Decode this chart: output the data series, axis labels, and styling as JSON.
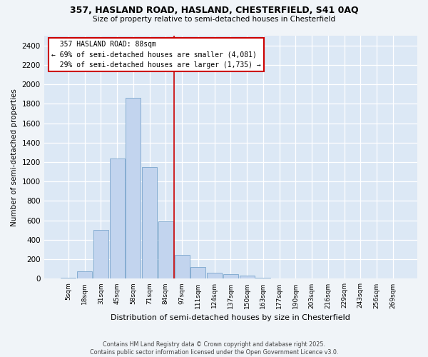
{
  "title_line1": "357, HASLAND ROAD, HASLAND, CHESTERFIELD, S41 0AQ",
  "title_line2": "Size of property relative to semi-detached houses in Chesterfield",
  "xlabel": "Distribution of semi-detached houses by size in Chesterfield",
  "ylabel": "Number of semi-detached properties",
  "footer_line1": "Contains HM Land Registry data © Crown copyright and database right 2025.",
  "footer_line2": "Contains public sector information licensed under the Open Government Licence v3.0.",
  "bin_labels": [
    "5sqm",
    "18sqm",
    "31sqm",
    "45sqm",
    "58sqm",
    "71sqm",
    "84sqm",
    "97sqm",
    "111sqm",
    "124sqm",
    "137sqm",
    "150sqm",
    "163sqm",
    "177sqm",
    "190sqm",
    "203sqm",
    "216sqm",
    "229sqm",
    "243sqm",
    "256sqm",
    "269sqm"
  ],
  "bar_values": [
    10,
    80,
    500,
    1240,
    1860,
    1150,
    590,
    245,
    120,
    65,
    45,
    30,
    10,
    5,
    2,
    1,
    0,
    0,
    0,
    0,
    0
  ],
  "bar_color": "#c2d4ee",
  "bar_edge_color": "#7aa5cc",
  "plot_bg_color": "#dce8f5",
  "fig_bg_color": "#f0f4f8",
  "grid_color": "#ffffff",
  "property_label": "357 HASLAND ROAD: 88sqm",
  "smaller_pct": "69%",
  "smaller_count": "4,081",
  "larger_pct": "29%",
  "larger_count": "1,735",
  "vline_position": 6.5,
  "vline_color": "#cc0000",
  "annotation_box_edgecolor": "#cc0000",
  "ylim_max": 2500,
  "ytick_max": 2400,
  "ytick_step": 200
}
